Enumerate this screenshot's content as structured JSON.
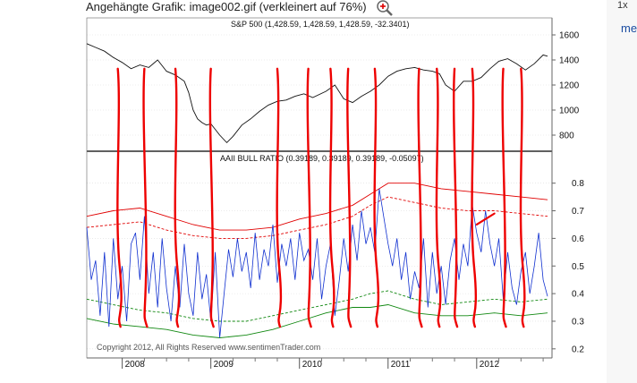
{
  "caption": {
    "text": "Angehängte Grafik: image002.gif (verkleinert auf 76%)",
    "icon": "zoom-magnifier-icon"
  },
  "edge": {
    "top_text": "1x",
    "link_text": "me"
  },
  "colors": {
    "sp500": "#111111",
    "bull_ratio": "#1030d0",
    "upper_band": "#e00000",
    "lower_band": "#118811",
    "annotation": "#ee0000",
    "grid": "#dddddd"
  },
  "chart_data": [
    {
      "type": "line",
      "title": "S&P 500 (1,428.59, 1,428.59, 1,428.59, -32.3401)",
      "ylim": [
        700,
        1650
      ],
      "yticks": [
        800,
        1000,
        1200,
        1400,
        1600
      ],
      "x_years": [
        "2008",
        "2009",
        "2010",
        "2011",
        "2012"
      ],
      "xlim": [
        2007.6,
        2012.85
      ],
      "series": [
        {
          "name": "S&P 500",
          "x": [
            2007.6,
            2007.7,
            2007.8,
            2007.9,
            2008.0,
            2008.1,
            2008.2,
            2008.3,
            2008.4,
            2008.5,
            2008.6,
            2008.7,
            2008.75,
            2008.8,
            2008.85,
            2008.9,
            2008.95,
            2009.0,
            2009.1,
            2009.18,
            2009.25,
            2009.35,
            2009.45,
            2009.55,
            2009.65,
            2009.75,
            2009.85,
            2009.95,
            2010.05,
            2010.15,
            2010.3,
            2010.4,
            2010.5,
            2010.6,
            2010.7,
            2010.8,
            2010.9,
            2011.0,
            2011.1,
            2011.2,
            2011.3,
            2011.4,
            2011.5,
            2011.58,
            2011.65,
            2011.75,
            2011.85,
            2011.95,
            2012.05,
            2012.15,
            2012.25,
            2012.35,
            2012.45,
            2012.55,
            2012.65,
            2012.75,
            2012.8
          ],
          "values": [
            1530,
            1500,
            1470,
            1420,
            1380,
            1330,
            1360,
            1340,
            1400,
            1310,
            1280,
            1230,
            1140,
            1000,
            930,
            900,
            880,
            890,
            800,
            740,
            790,
            880,
            930,
            990,
            1040,
            1070,
            1080,
            1110,
            1130,
            1100,
            1150,
            1200,
            1090,
            1060,
            1110,
            1150,
            1200,
            1270,
            1310,
            1330,
            1340,
            1320,
            1310,
            1290,
            1200,
            1150,
            1230,
            1230,
            1260,
            1330,
            1390,
            1410,
            1370,
            1320,
            1370,
            1440,
            1430
          ]
        }
      ]
    },
    {
      "type": "line",
      "title": "AAII BULL RATIO (0.39189, 0.39189, 0.39189, -0.05097)",
      "ylim": [
        0.18,
        0.88
      ],
      "yticks": [
        0.2,
        0.3,
        0.4,
        0.5,
        0.6,
        0.7,
        0.8
      ],
      "x_years": [
        "2008",
        "2009",
        "2010",
        "2011",
        "2012"
      ],
      "xlim": [
        2007.6,
        2012.85
      ],
      "series": [
        {
          "name": "Bull Ratio",
          "x": [
            2007.6,
            2007.65,
            2007.7,
            2007.75,
            2007.8,
            2007.85,
            2007.9,
            2007.95,
            2008.0,
            2008.05,
            2008.1,
            2008.15,
            2008.2,
            2008.25,
            2008.3,
            2008.35,
            2008.4,
            2008.45,
            2008.5,
            2008.55,
            2008.6,
            2008.65,
            2008.7,
            2008.75,
            2008.8,
            2008.85,
            2008.9,
            2008.95,
            2009.0,
            2009.05,
            2009.1,
            2009.15,
            2009.2,
            2009.25,
            2009.3,
            2009.35,
            2009.4,
            2009.45,
            2009.5,
            2009.55,
            2009.6,
            2009.65,
            2009.7,
            2009.75,
            2009.8,
            2009.85,
            2009.9,
            2009.95,
            2010.0,
            2010.05,
            2010.1,
            2010.15,
            2010.2,
            2010.25,
            2010.3,
            2010.35,
            2010.4,
            2010.45,
            2010.5,
            2010.55,
            2010.6,
            2010.65,
            2010.7,
            2010.75,
            2010.8,
            2010.85,
            2010.9,
            2010.95,
            2011.0,
            2011.05,
            2011.1,
            2011.15,
            2011.2,
            2011.25,
            2011.3,
            2011.35,
            2011.4,
            2011.45,
            2011.5,
            2011.55,
            2011.6,
            2011.65,
            2011.7,
            2011.75,
            2011.8,
            2011.85,
            2011.9,
            2011.95,
            2012.0,
            2012.05,
            2012.1,
            2012.15,
            2012.2,
            2012.25,
            2012.3,
            2012.35,
            2012.4,
            2012.45,
            2012.5,
            2012.55,
            2012.6,
            2012.65,
            2012.7,
            2012.75,
            2012.8
          ],
          "values": [
            0.64,
            0.45,
            0.52,
            0.32,
            0.55,
            0.28,
            0.6,
            0.38,
            0.5,
            0.3,
            0.58,
            0.62,
            0.45,
            0.68,
            0.4,
            0.55,
            0.35,
            0.6,
            0.42,
            0.3,
            0.5,
            0.35,
            0.58,
            0.4,
            0.32,
            0.55,
            0.38,
            0.47,
            0.3,
            0.55,
            0.24,
            0.4,
            0.56,
            0.46,
            0.6,
            0.48,
            0.55,
            0.42,
            0.62,
            0.45,
            0.56,
            0.5,
            0.65,
            0.44,
            0.58,
            0.5,
            0.6,
            0.45,
            0.62,
            0.52,
            0.56,
            0.45,
            0.6,
            0.38,
            0.5,
            0.58,
            0.32,
            0.45,
            0.6,
            0.48,
            0.65,
            0.52,
            0.7,
            0.58,
            0.64,
            0.55,
            0.78,
            0.68,
            0.58,
            0.5,
            0.6,
            0.45,
            0.55,
            0.38,
            0.48,
            0.42,
            0.6,
            0.35,
            0.55,
            0.4,
            0.5,
            0.36,
            0.52,
            0.6,
            0.45,
            0.58,
            0.5,
            0.72,
            0.62,
            0.55,
            0.7,
            0.58,
            0.5,
            0.6,
            0.38,
            0.55,
            0.42,
            0.36,
            0.48,
            0.55,
            0.4,
            0.5,
            0.62,
            0.45,
            0.39
          ]
        },
        {
          "name": "Upper Band",
          "x": [
            2007.6,
            2007.9,
            2008.2,
            2008.5,
            2008.8,
            2009.1,
            2009.4,
            2009.7,
            2010.0,
            2010.3,
            2010.6,
            2010.8,
            2011.0,
            2011.3,
            2011.6,
            2011.9,
            2012.2,
            2012.5,
            2012.8
          ],
          "values": [
            0.68,
            0.7,
            0.71,
            0.68,
            0.65,
            0.63,
            0.63,
            0.64,
            0.67,
            0.69,
            0.72,
            0.76,
            0.8,
            0.8,
            0.78,
            0.77,
            0.76,
            0.75,
            0.74
          ]
        },
        {
          "name": "Upper Band (dashed)",
          "x": [
            2007.6,
            2007.9,
            2008.2,
            2008.5,
            2008.8,
            2009.1,
            2009.4,
            2009.7,
            2010.0,
            2010.3,
            2010.6,
            2010.8,
            2011.0,
            2011.3,
            2011.6,
            2011.9,
            2012.2,
            2012.5,
            2012.8
          ],
          "values": [
            0.64,
            0.65,
            0.66,
            0.63,
            0.61,
            0.6,
            0.6,
            0.61,
            0.63,
            0.65,
            0.68,
            0.72,
            0.75,
            0.73,
            0.71,
            0.7,
            0.7,
            0.69,
            0.68
          ]
        },
        {
          "name": "Lower Band (dashed)",
          "x": [
            2007.6,
            2007.9,
            2008.2,
            2008.5,
            2008.8,
            2009.1,
            2009.4,
            2009.7,
            2010.0,
            2010.3,
            2010.6,
            2010.8,
            2011.0,
            2011.3,
            2011.6,
            2011.9,
            2012.2,
            2012.5,
            2012.8
          ],
          "values": [
            0.38,
            0.36,
            0.34,
            0.33,
            0.31,
            0.3,
            0.3,
            0.32,
            0.34,
            0.36,
            0.38,
            0.4,
            0.41,
            0.38,
            0.36,
            0.37,
            0.38,
            0.37,
            0.38
          ]
        },
        {
          "name": "Lower Band",
          "x": [
            2007.6,
            2007.9,
            2008.2,
            2008.5,
            2008.8,
            2009.1,
            2009.4,
            2009.7,
            2010.0,
            2010.3,
            2010.6,
            2010.8,
            2011.0,
            2011.3,
            2011.6,
            2011.9,
            2012.2,
            2012.5,
            2012.8
          ],
          "values": [
            0.31,
            0.29,
            0.28,
            0.27,
            0.25,
            0.24,
            0.25,
            0.27,
            0.3,
            0.33,
            0.35,
            0.35,
            0.36,
            0.33,
            0.32,
            0.32,
            0.33,
            0.32,
            0.33
          ]
        }
      ],
      "annotations": {
        "type": "hand-drawn red strokes",
        "x_positions": [
          2007.95,
          2008.25,
          2008.6,
          2009.0,
          2009.75,
          2010.1,
          2010.35,
          2010.55,
          2010.85,
          2011.35,
          2011.55,
          2011.75,
          2011.95,
          2012.3,
          2012.5
        ],
        "extra_stroke": {
          "from": [
            2012.0,
            0.65
          ],
          "to": [
            2012.2,
            0.69
          ]
        }
      },
      "footer": "Copyright 2012, All Rights Reserved  www.sentimenTrader.com"
    }
  ]
}
